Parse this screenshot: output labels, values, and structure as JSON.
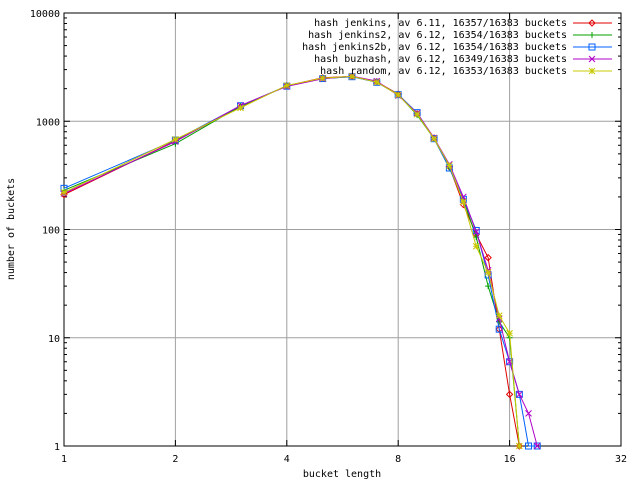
{
  "chart_data": {
    "type": "line",
    "title": "",
    "xlabel": "bucket length",
    "ylabel": "number of buckets",
    "x_scale": "log2",
    "y_scale": "log10",
    "xlim": [
      1,
      32
    ],
    "ylim": [
      1,
      10000
    ],
    "x_ticks": [
      {
        "value": 1,
        "label": "1"
      },
      {
        "value": 2,
        "label": "2"
      },
      {
        "value": 4,
        "label": "4"
      },
      {
        "value": 8,
        "label": "8"
      },
      {
        "value": 16,
        "label": "16"
      },
      {
        "value": 32,
        "label": "32"
      }
    ],
    "y_ticks": [
      {
        "value": 1,
        "label": "1"
      },
      {
        "value": 10,
        "label": "10"
      },
      {
        "value": 100,
        "label": "100"
      },
      {
        "value": 1000,
        "label": "1000"
      },
      {
        "value": 10000,
        "label": "10000"
      }
    ],
    "grid": true,
    "legend_position": "top-right",
    "series": [
      {
        "name": "hash jenkins, av 6.11, 16357/16383 buckets",
        "color": "#e00000",
        "marker": "diamond",
        "points": [
          [
            1,
            210
          ],
          [
            2,
            660
          ],
          [
            3,
            1360
          ],
          [
            4,
            2130
          ],
          [
            5,
            2520
          ],
          [
            6,
            2600
          ],
          [
            7,
            2320
          ],
          [
            8,
            1780
          ],
          [
            9,
            1170
          ],
          [
            10,
            700
          ],
          [
            11,
            380
          ],
          [
            12,
            170
          ],
          [
            13,
            90
          ],
          [
            14,
            55
          ],
          [
            15,
            12
          ],
          [
            16,
            3
          ],
          [
            17,
            1
          ]
        ]
      },
      {
        "name": "hash jenkins2, av 6.12, 16354/16383 buckets",
        "color": "#00a000",
        "marker": "plus",
        "points": [
          [
            1,
            230
          ],
          [
            2,
            620
          ],
          [
            3,
            1380
          ],
          [
            4,
            2120
          ],
          [
            5,
            2480
          ],
          [
            6,
            2580
          ],
          [
            7,
            2300
          ],
          [
            8,
            1760
          ],
          [
            9,
            1140
          ],
          [
            10,
            690
          ],
          [
            11,
            370
          ],
          [
            12,
            190
          ],
          [
            13,
            85
          ],
          [
            14,
            30
          ],
          [
            15,
            14
          ],
          [
            16,
            10
          ],
          [
            17,
            1
          ]
        ]
      },
      {
        "name": "hash jenkins2b, av 6.12, 16354/16383 buckets",
        "color": "#0060ff",
        "marker": "square",
        "points": [
          [
            1,
            240
          ],
          [
            2,
            670
          ],
          [
            3,
            1390
          ],
          [
            4,
            2110
          ],
          [
            5,
            2480
          ],
          [
            6,
            2580
          ],
          [
            7,
            2290
          ],
          [
            8,
            1760
          ],
          [
            9,
            1200
          ],
          [
            10,
            690
          ],
          [
            11,
            370
          ],
          [
            12,
            190
          ],
          [
            13,
            98
          ],
          [
            14,
            38
          ],
          [
            15,
            12
          ],
          [
            16,
            6
          ],
          [
            17,
            3
          ],
          [
            18,
            1
          ],
          [
            19,
            1
          ]
        ]
      },
      {
        "name": "hash buzhash, av 6.12, 16349/16383 buckets",
        "color": "#b000c8",
        "marker": "cross",
        "points": [
          [
            1,
            215
          ],
          [
            2,
            650
          ],
          [
            3,
            1400
          ],
          [
            4,
            2100
          ],
          [
            5,
            2470
          ],
          [
            6,
            2610
          ],
          [
            7,
            2350
          ],
          [
            8,
            1730
          ],
          [
            9,
            1190
          ],
          [
            10,
            700
          ],
          [
            11,
            400
          ],
          [
            12,
            200
          ],
          [
            13,
            95
          ],
          [
            14,
            42
          ],
          [
            15,
            15
          ],
          [
            16,
            6
          ],
          [
            17,
            3
          ],
          [
            18,
            2
          ],
          [
            19,
            1
          ]
        ]
      },
      {
        "name": "hash random, av 6.12, 16353/16383 buckets",
        "color": "#c8c800",
        "marker": "star",
        "points": [
          [
            1,
            220
          ],
          [
            2,
            680
          ],
          [
            3,
            1330
          ],
          [
            4,
            2140
          ],
          [
            5,
            2500
          ],
          [
            6,
            2600
          ],
          [
            7,
            2300
          ],
          [
            8,
            1750
          ],
          [
            9,
            1160
          ],
          [
            10,
            690
          ],
          [
            11,
            390
          ],
          [
            12,
            180
          ],
          [
            13,
            70
          ],
          [
            14,
            40
          ],
          [
            15,
            16
          ],
          [
            16,
            11
          ],
          [
            17,
            1
          ]
        ]
      }
    ]
  }
}
